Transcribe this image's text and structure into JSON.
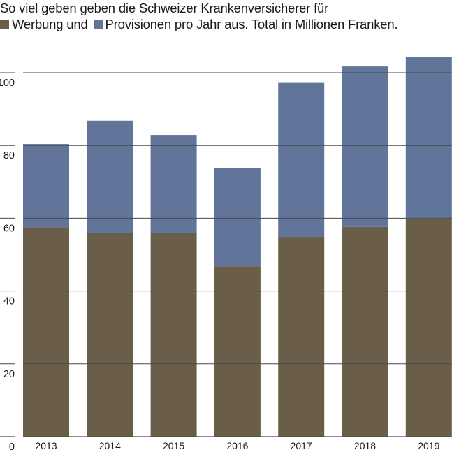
{
  "title": {
    "line1": "So viel geben geben die Schweizer Krankenversicherer für",
    "legend_1": "Werbung und",
    "legend_2": "Provisionen pro Jahr aus. Total in Millionen Franken."
  },
  "colors": {
    "werbung": "#6b5e48",
    "provisionen": "#61759b",
    "grid": "#4a4a4a"
  },
  "chart_data": {
    "type": "bar",
    "stacked": true,
    "title": "So viel geben geben die Schweizer Krankenversicherer für Werbung und Provisionen pro Jahr aus. Total in Millionen Franken.",
    "xlabel": "",
    "ylabel": "",
    "categories": [
      "2013",
      "2014",
      "2015",
      "2016",
      "2017",
      "2018",
      "2019"
    ],
    "series": [
      {
        "name": "Werbung",
        "values": [
          57.5,
          56.0,
          55.9,
          46.8,
          54.9,
          57.6,
          59.9
        ]
      },
      {
        "name": "Provisionen",
        "values": [
          22.9,
          30.8,
          27.0,
          27.1,
          42.3,
          44.1,
          44.5
        ]
      }
    ],
    "totals": [
      80.4,
      86.8,
      82.9,
      73.9,
      97.2,
      101.7,
      104.4
    ],
    "yticks": [
      0,
      20,
      40,
      60,
      80,
      100
    ],
    "ylim": [
      0,
      100
    ],
    "grid": true,
    "legend_position": "inline-title"
  }
}
